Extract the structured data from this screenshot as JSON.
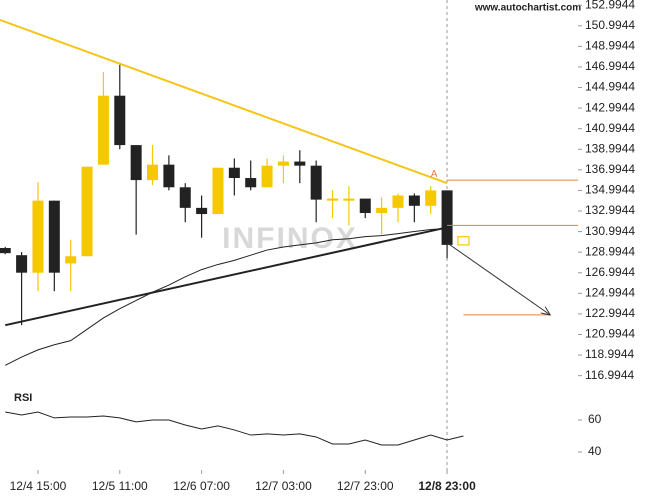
{
  "chart_data": {
    "type": "candlestick",
    "source": "www.autochartist.com",
    "watermark": "INFINOX",
    "categories": [
      null,
      null,
      "12/4 15:00",
      null,
      null,
      null,
      null,
      "12/5 11:00",
      null,
      null,
      null,
      null,
      "12/6 07:00",
      null,
      null,
      null,
      null,
      "12/7 03:00",
      null,
      null,
      null,
      null,
      "12/7 23:00",
      null,
      null,
      null,
      null,
      "12/8 23:00"
    ],
    "open": [
      129.4,
      128.7,
      127.0,
      134.0,
      127.9,
      128.6,
      137.5,
      144.2,
      139.4,
      136.0,
      137.5,
      135.3,
      133.3,
      132.7,
      137.2,
      136.2,
      135.3,
      137.4,
      137.8,
      137.4,
      134.0,
      134.0,
      134.2,
      132.8,
      133.3,
      134.5,
      133.5,
      135.0
    ],
    "high": [
      129.5,
      129.0,
      135.8,
      134.0,
      130.2,
      137.3,
      146.5,
      147.2,
      139.4,
      139.4,
      138.4,
      135.7,
      134.5,
      137.2,
      138.1,
      137.9,
      138.1,
      138.4,
      138.9,
      137.9,
      135.0,
      135.4,
      134.2,
      134.3,
      134.7,
      134.7,
      135.4,
      135.0
    ],
    "low": [
      128.8,
      121.9,
      125.2,
      125.2,
      125.2,
      128.6,
      137.5,
      139.0,
      130.7,
      135.5,
      135.0,
      131.9,
      130.4,
      132.7,
      134.5,
      135.0,
      135.3,
      135.7,
      135.7,
      131.9,
      132.3,
      131.6,
      132.3,
      130.7,
      131.9,
      131.9,
      132.7,
      128.4
    ],
    "close": [
      128.9,
      127.0,
      134.0,
      127.0,
      128.6,
      137.3,
      144.2,
      139.4,
      136.0,
      137.5,
      135.3,
      133.3,
      132.7,
      137.2,
      136.2,
      135.3,
      137.4,
      137.8,
      137.4,
      134.1,
      134.2,
      134.2,
      132.8,
      133.3,
      134.5,
      133.5,
      135.0,
      129.7
    ],
    "up_color": "#f5c800",
    "down_color": "#222222",
    "pending_bar": {
      "x": 28,
      "open": 129.7,
      "close": 130.5,
      "color": "#f5c800"
    },
    "moving_average": {
      "color": "#222222",
      "values": [
        118.0,
        118.8,
        119.5,
        120.0,
        120.4,
        121.5,
        122.6,
        123.5,
        124.3,
        125.1,
        125.8,
        126.6,
        127.3,
        127.8,
        128.2,
        128.7,
        129.2,
        129.5,
        129.7,
        129.9,
        130.2,
        130.3,
        130.5,
        130.6,
        130.8,
        131.0,
        131.2,
        131.3
      ]
    },
    "trendlines": [
      {
        "x": [
          -0.32,
          27
        ],
        "y": [
          151.56,
          135.7
        ],
        "color": "#f5c518"
      },
      {
        "x": [
          0,
          27
        ],
        "y": [
          121.9,
          131.4
        ],
        "color": "#222222"
      }
    ],
    "levels": [
      {
        "value": 136.0,
        "x": [
          27,
          35.0
        ]
      },
      {
        "value": 131.6,
        "x": [
          27,
          35.0
        ]
      },
      {
        "value": 122.9,
        "x": [
          28,
          33.3
        ]
      }
    ],
    "level_color": "#f07a3a",
    "forecast": {
      "x": [
        27,
        33.3
      ],
      "y": [
        129.9,
        122.9
      ]
    },
    "pattern_label": "A",
    "xlim": [
      -0.32,
      35.0
    ],
    "ylim": [
      115.6,
      153.5
    ],
    "yticks": [
      152.9944,
      150.9944,
      148.9944,
      146.9944,
      144.9944,
      142.9944,
      140.9944,
      138.9944,
      136.9944,
      134.9944,
      132.9944,
      130.9944,
      128.9944,
      126.9944,
      124.9944,
      122.9944,
      120.9944,
      118.9944,
      116.9944
    ],
    "rsi": {
      "title": "RSI",
      "color": "#222222",
      "values": [
        65,
        63.1,
        65,
        61.3,
        61.9,
        61.9,
        62.5,
        61.3,
        58.8,
        60,
        60,
        56.9,
        54.4,
        56.3,
        53.8,
        50.6,
        51.3,
        50.6,
        51.3,
        49.4,
        45,
        45,
        47.5,
        44.4,
        44.4,
        47.5,
        50.6,
        47.5,
        50
      ],
      "ylim": [
        30,
        75
      ],
      "yticks": [
        60,
        40
      ]
    }
  }
}
